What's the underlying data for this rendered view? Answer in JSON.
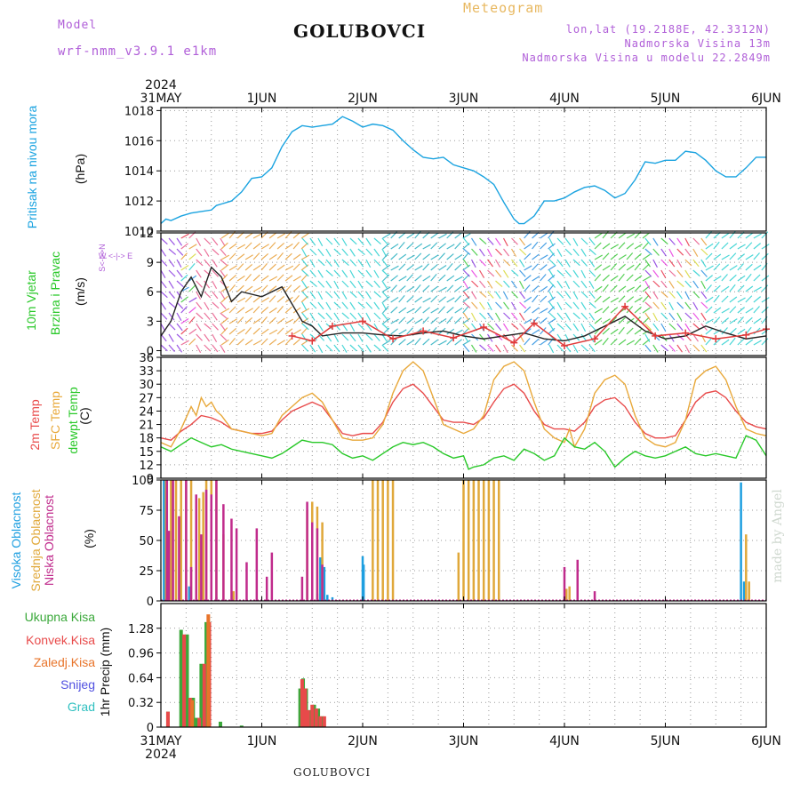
{
  "header": {
    "model_label": "Model",
    "model_name": "wrf-nmm_v3.9.1 e1km",
    "station": "GOLUBOVCI",
    "chart_kind": "Meteogram",
    "lonlat": "lon,lat (19.2188E, 42.3312N)",
    "elevation": "Nadmorska Visina 13m",
    "model_elevation": "Nadmorska Visina u modelu 22.2849m",
    "footer_station": "GOLUBOVCI",
    "credit": "made by Angel"
  },
  "time_axis": {
    "year": "2024",
    "labels": [
      "31MAY",
      "1JUN",
      "2JUN",
      "3JUN",
      "4JUN",
      "5JUN",
      "6JUN"
    ]
  },
  "panel_labels": {
    "pressure": [
      "Pritisak na nivou mora",
      "(hPa)"
    ],
    "wind": [
      "10m Vjetar",
      "Brzina i Pravac",
      "(m/s)"
    ],
    "compass": "W <-|-> E",
    "compass_vertical": "S<-|->N",
    "temp": [
      "2m Temp",
      "SFC Temp",
      "dewpt Temp",
      "(C)"
    ],
    "cloud": [
      "Visoka Oblacnost",
      "Srednja Oblacnost",
      "Niska Oblacnost",
      "(%)"
    ],
    "precip_legend": [
      "Ukupna Kisa",
      "Konvek.Kisa",
      "Zaledj.Kisa",
      "Snijeg",
      "Grad"
    ],
    "precip_unit": "1hr Precip (mm)"
  },
  "colors": {
    "pressure": "#1aa3e0",
    "temp2m": "#e84a4a",
    "sfc": "#e8a83a",
    "dew": "#28c828",
    "cloud_high": "#1e9fe0",
    "cloud_mid": "#e0a83a",
    "cloud_low": "#c02b8c",
    "precip_total": "#3aa83a",
    "precip_conv": "#e84a4a",
    "precip_frz": "#e8742a",
    "snow": "#5050e0",
    "hail": "#30c0c0",
    "wind_speed": "#222222",
    "gust": "#e03a3a"
  },
  "chart_data": [
    {
      "type": "line",
      "name": "pressure",
      "x_unit": "days since 2024-05-31 00UTC",
      "yticks": [
        1010,
        1012,
        1014,
        1016,
        1018
      ],
      "ylim": [
        1010,
        1018.2
      ],
      "series": [
        {
          "color_key": "pressure",
          "x": [
            0,
            0.05,
            0.1,
            0.2,
            0.3,
            0.4,
            0.5,
            0.55,
            0.6,
            0.7,
            0.8,
            0.9,
            1.0,
            1.1,
            1.2,
            1.3,
            1.4,
            1.5,
            1.6,
            1.7,
            1.8,
            1.9,
            2.0,
            2.1,
            2.2,
            2.3,
            2.4,
            2.5,
            2.6,
            2.7,
            2.8,
            2.9,
            3.0,
            3.1,
            3.2,
            3.3,
            3.4,
            3.5,
            3.55,
            3.6,
            3.7,
            3.8,
            3.9,
            4.0,
            4.1,
            4.2,
            4.3,
            4.4,
            4.5,
            4.6,
            4.7,
            4.8,
            4.9,
            5.0,
            5.1,
            5.2,
            5.3,
            5.4,
            5.5,
            5.6,
            5.7,
            5.8,
            5.9,
            6.0
          ],
          "y": [
            1010.5,
            1010.8,
            1010.7,
            1011.0,
            1011.2,
            1011.3,
            1011.4,
            1011.7,
            1011.8,
            1012.0,
            1012.6,
            1013.5,
            1013.6,
            1014.2,
            1015.6,
            1016.6,
            1017.0,
            1016.9,
            1017.0,
            1017.1,
            1017.6,
            1017.3,
            1016.9,
            1017.1,
            1017.0,
            1016.7,
            1016.0,
            1015.4,
            1014.9,
            1014.8,
            1014.9,
            1014.4,
            1014.2,
            1014.0,
            1013.6,
            1013.1,
            1011.9,
            1010.8,
            1010.5,
            1010.5,
            1011.0,
            1012.0,
            1012.0,
            1012.2,
            1012.6,
            1012.9,
            1013.0,
            1012.7,
            1012.2,
            1012.5,
            1013.4,
            1014.6,
            1014.5,
            1014.7,
            1014.7,
            1015.3,
            1015.2,
            1014.7,
            1014.0,
            1013.6,
            1013.6,
            1014.2,
            1014.9,
            1014.9
          ]
        }
      ]
    },
    {
      "type": "line",
      "name": "wind",
      "yticks": [
        0,
        3,
        6,
        9,
        12
      ],
      "ylim": [
        -0.5,
        12
      ],
      "series": [
        {
          "color_key": "wind_speed",
          "x": [
            0,
            0.1,
            0.2,
            0.3,
            0.4,
            0.5,
            0.6,
            0.7,
            0.8,
            1.0,
            1.2,
            1.4,
            1.5,
            1.6,
            1.8,
            2.0,
            2.2,
            2.4,
            2.6,
            2.8,
            3.0,
            3.2,
            3.4,
            3.6,
            3.8,
            4.0,
            4.2,
            4.4,
            4.6,
            4.8,
            5.0,
            5.2,
            5.4,
            5.6,
            5.8,
            6.0
          ],
          "y": [
            1.5,
            3.0,
            6.0,
            7.5,
            5.5,
            8.5,
            7.5,
            5.0,
            6.0,
            5.5,
            6.5,
            3.0,
            2.5,
            1.5,
            1.8,
            1.8,
            1.6,
            1.5,
            1.8,
            2.0,
            1.5,
            1.2,
            1.5,
            1.8,
            1.2,
            1.0,
            1.5,
            2.5,
            3.5,
            2.0,
            1.2,
            1.5,
            2.5,
            1.8,
            1.2,
            1.5
          ]
        },
        {
          "color_key": "gust",
          "x": [
            1.3,
            1.5,
            1.7,
            2.0,
            2.3,
            2.6,
            2.9,
            3.2,
            3.5,
            3.7,
            4.0,
            4.3,
            4.6,
            4.9,
            5.2,
            5.5,
            5.8,
            6.0
          ],
          "y": [
            1.5,
            1.0,
            2.5,
            3.0,
            1.2,
            2.0,
            1.3,
            2.4,
            0.8,
            2.8,
            0.5,
            1.2,
            4.5,
            1.5,
            1.8,
            1.2,
            1.6,
            2.2
          ]
        }
      ]
    },
    {
      "type": "line",
      "name": "temperature",
      "yticks": [
        9,
        12,
        15,
        18,
        21,
        24,
        27,
        30,
        33,
        36
      ],
      "ylim": [
        9,
        36
      ],
      "series": [
        {
          "color_key": "temp2m",
          "x": [
            0,
            0.1,
            0.2,
            0.3,
            0.4,
            0.5,
            0.6,
            0.7,
            0.8,
            0.9,
            1.0,
            1.1,
            1.2,
            1.3,
            1.4,
            1.5,
            1.6,
            1.7,
            1.8,
            1.9,
            2.0,
            2.1,
            2.2,
            2.3,
            2.4,
            2.5,
            2.6,
            2.7,
            2.8,
            2.9,
            3.0,
            3.1,
            3.2,
            3.3,
            3.4,
            3.5,
            3.6,
            3.7,
            3.8,
            3.9,
            4.0,
            4.1,
            4.2,
            4.3,
            4.4,
            4.5,
            4.6,
            4.7,
            4.8,
            4.9,
            5.0,
            5.1,
            5.2,
            5.3,
            5.4,
            5.5,
            5.6,
            5.7,
            5.8,
            5.9,
            6.0
          ],
          "y": [
            18,
            17.5,
            19.5,
            21,
            23,
            22.5,
            21.5,
            20,
            19.5,
            19,
            19,
            19.5,
            22,
            24,
            25,
            26,
            25,
            22,
            19,
            18.5,
            19,
            19,
            21.5,
            26,
            29,
            30,
            28,
            25,
            22,
            21.5,
            21.5,
            21,
            22.5,
            26,
            29,
            30,
            28,
            24,
            21,
            20,
            20,
            19.5,
            21.5,
            25,
            26.5,
            27,
            25,
            21.5,
            19,
            18,
            18,
            18.5,
            22,
            26,
            28,
            28.5,
            27,
            24,
            21.5,
            20.5,
            20
          ]
        },
        {
          "color_key": "sfc",
          "x": [
            0,
            0.1,
            0.2,
            0.3,
            0.35,
            0.4,
            0.45,
            0.5,
            0.55,
            0.6,
            0.7,
            0.8,
            0.9,
            1.0,
            1.1,
            1.2,
            1.3,
            1.4,
            1.5,
            1.6,
            1.7,
            1.8,
            1.9,
            2.0,
            2.1,
            2.2,
            2.3,
            2.4,
            2.5,
            2.6,
            2.7,
            2.8,
            2.9,
            3.0,
            3.1,
            3.2,
            3.3,
            3.4,
            3.5,
            3.6,
            3.7,
            3.8,
            3.9,
            4.0,
            4.05,
            4.1,
            4.2,
            4.3,
            4.4,
            4.5,
            4.6,
            4.7,
            4.8,
            4.9,
            5.0,
            5.1,
            5.2,
            5.3,
            5.4,
            5.5,
            5.6,
            5.7,
            5.8,
            5.9,
            6.0
          ],
          "y": [
            17,
            16,
            20,
            25,
            23,
            27,
            25,
            26,
            24,
            23,
            20,
            19.5,
            19,
            18.5,
            19,
            23,
            25,
            27,
            28,
            26,
            22,
            18,
            17.5,
            17.5,
            18,
            21,
            28,
            33,
            35,
            33,
            27,
            21,
            20,
            19,
            20,
            23,
            31,
            34,
            35,
            33,
            26,
            20,
            18,
            17,
            20,
            16,
            20,
            28,
            31,
            32,
            30,
            23,
            18,
            16.5,
            16,
            17,
            22,
            31,
            33,
            34,
            31,
            25,
            20,
            19,
            18.5
          ]
        },
        {
          "color_key": "dew",
          "x": [
            0,
            0.1,
            0.2,
            0.3,
            0.4,
            0.5,
            0.6,
            0.7,
            0.8,
            0.9,
            1.0,
            1.1,
            1.2,
            1.3,
            1.4,
            1.5,
            1.6,
            1.7,
            1.8,
            1.9,
            2.0,
            2.1,
            2.2,
            2.3,
            2.4,
            2.5,
            2.6,
            2.7,
            2.8,
            2.9,
            3.0,
            3.05,
            3.1,
            3.2,
            3.3,
            3.4,
            3.5,
            3.6,
            3.7,
            3.8,
            3.9,
            4.0,
            4.1,
            4.2,
            4.3,
            4.4,
            4.5,
            4.6,
            4.7,
            4.8,
            4.9,
            5.0,
            5.1,
            5.2,
            5.3,
            5.4,
            5.5,
            5.6,
            5.7,
            5.8,
            5.9,
            6.0
          ],
          "y": [
            16,
            15,
            16.5,
            18,
            17,
            16,
            16.5,
            15.5,
            15,
            14.5,
            14,
            13.5,
            14.5,
            16,
            17.5,
            17,
            17,
            16.5,
            14.5,
            13.5,
            14,
            13,
            14.5,
            16,
            17,
            16.5,
            17,
            16,
            14.5,
            13.5,
            14,
            11,
            11.5,
            12,
            13.5,
            14,
            13,
            15.5,
            14.5,
            13,
            14,
            18,
            16,
            15.5,
            17,
            15,
            11.5,
            13.5,
            15,
            14,
            13.5,
            14,
            15,
            16,
            14.5,
            14,
            14.5,
            14,
            13.5,
            18.5,
            17.5,
            14
          ]
        }
      ]
    },
    {
      "type": "bar",
      "name": "cloud cover",
      "yticks": [
        0,
        25,
        50,
        75,
        100
      ],
      "ylim": [
        0,
        100
      ],
      "series": [
        {
          "color_key": "cloud_high",
          "x": [
            0.03,
            0.04,
            0.28,
            0.5,
            0.55,
            0.72,
            1.55,
            1.58,
            1.62,
            1.65,
            1.7,
            2.0,
            2.01,
            5.75,
            5.78
          ],
          "y": [
            100,
            60,
            12,
            5,
            3,
            4,
            6,
            36,
            28,
            5,
            3,
            37,
            30,
            98,
            16
          ]
        },
        {
          "color_key": "cloud_mid",
          "x": [
            0.05,
            0.1,
            0.15,
            0.2,
            0.25,
            0.3,
            0.38,
            0.42,
            0.45,
            0.5,
            0.55,
            0.62,
            0.72,
            1.45,
            1.5,
            1.55,
            1.6,
            2.1,
            2.15,
            2.2,
            2.25,
            2.3,
            2.95,
            3.0,
            3.05,
            3.1,
            3.15,
            3.2,
            3.25,
            3.3,
            3.35,
            4.02,
            4.05,
            5.8,
            5.83
          ],
          "y": [
            100,
            100,
            100,
            100,
            100,
            100,
            85,
            90,
            100,
            100,
            100,
            55,
            8,
            75,
            82,
            78,
            65,
            100,
            100,
            100,
            100,
            100,
            40,
            100,
            100,
            100,
            100,
            100,
            100,
            100,
            100,
            10,
            12,
            55,
            16
          ]
        },
        {
          "color_key": "cloud_low",
          "x": [
            0.06,
            0.08,
            0.12,
            0.18,
            0.25,
            0.3,
            0.35,
            0.4,
            0.45,
            0.5,
            0.55,
            0.62,
            0.7,
            0.75,
            0.85,
            0.95,
            1.05,
            1.1,
            1.4,
            1.45,
            1.5,
            1.55,
            1.6,
            4.0,
            4.13,
            4.3
          ],
          "y": [
            100,
            58,
            100,
            70,
            100,
            28,
            88,
            55,
            92,
            88,
            100,
            80,
            68,
            60,
            32,
            60,
            20,
            40,
            20,
            82,
            65,
            60,
            30,
            28,
            34,
            8
          ]
        }
      ]
    },
    {
      "type": "bar",
      "name": "precipitation",
      "yticks": [
        0,
        0.32,
        0.64,
        0.96,
        1.28
      ],
      "ylim": [
        0,
        1.6
      ],
      "series": [
        {
          "color_key": "precip_total",
          "x": [
            0.07,
            0.2,
            0.26,
            0.32,
            0.35,
            0.4,
            0.45,
            0.59,
            0.8,
            1.38,
            1.41,
            1.44,
            1.48,
            1.52,
            1.56,
            1.6
          ],
          "y": [
            0.2,
            1.26,
            1.2,
            0.38,
            0.12,
            0.82,
            1.36,
            0.07,
            0.02,
            0.5,
            0.63,
            0.5,
            0.22,
            0.29,
            0.24,
            0.14
          ]
        },
        {
          "color_key": "precip_conv",
          "x": [
            0.07,
            0.23,
            0.29,
            0.38,
            0.43,
            0.48,
            1.4,
            1.43,
            1.46,
            1.5,
            1.54,
            1.58,
            1.62
          ],
          "y": [
            0.2,
            1.2,
            0.38,
            0.12,
            0.82,
            1.36,
            0.62,
            0.5,
            0.22,
            0.29,
            0.24,
            0.14,
            0.14
          ]
        },
        {
          "color_key": "precip_frz",
          "x": [
            0.31,
            0.47
          ],
          "y": [
            0.35,
            1.46
          ]
        }
      ]
    }
  ]
}
